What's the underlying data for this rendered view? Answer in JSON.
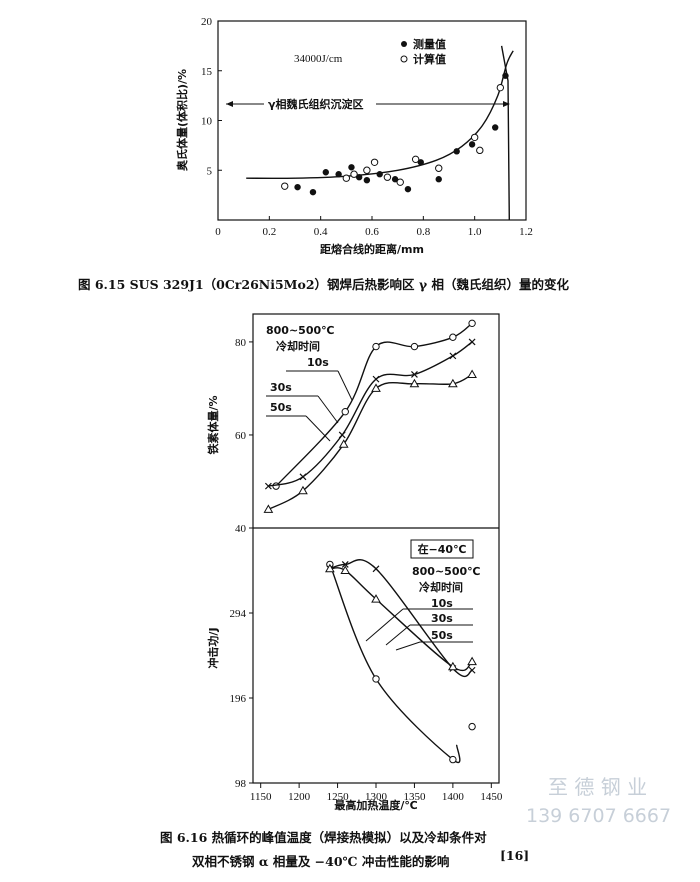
{
  "chart_data": [
    {
      "type": "scatter",
      "figure_caption": "图 6.15   SUS 329J1（0Cr26Ni5Mo2）钢焊后热影响区 γ 相（魏氏组织）量的变化",
      "xlabel": "距熔合线的距离/mm",
      "ylabel": "奥氏体量(体积比)/%",
      "xlim": [
        0,
        1.2
      ],
      "ylim": [
        0,
        20
      ],
      "x_ticks": [
        "0",
        "0.2",
        "0.4",
        "0.6",
        "0.8",
        "1.0",
        "1.2"
      ],
      "y_ticks": [
        "5",
        "10",
        "15",
        "20"
      ],
      "annotation_energy": "34000J/cm",
      "annotation_region": "γ相魏氏组织沉淀区",
      "legend": [
        {
          "label": "测量值",
          "marker": "filled-circle"
        },
        {
          "label": "计算值",
          "marker": "open-circle"
        }
      ],
      "series": [
        {
          "name": "测量值",
          "marker": "filled-circle",
          "points": [
            [
              0.31,
              3.3
            ],
            [
              0.37,
              2.8
            ],
            [
              0.42,
              4.8
            ],
            [
              0.47,
              4.6
            ],
            [
              0.52,
              5.3
            ],
            [
              0.55,
              4.3
            ],
            [
              0.58,
              4.0
            ],
            [
              0.63,
              4.6
            ],
            [
              0.69,
              4.1
            ],
            [
              0.74,
              3.1
            ],
            [
              0.79,
              5.8
            ],
            [
              0.86,
              4.1
            ],
            [
              0.93,
              6.9
            ],
            [
              0.99,
              7.6
            ],
            [
              1.08,
              9.3
            ],
            [
              1.12,
              14.5
            ]
          ]
        },
        {
          "name": "计算值",
          "marker": "open-circle",
          "points": [
            [
              0.26,
              3.4
            ],
            [
              0.5,
              4.2
            ],
            [
              0.53,
              4.6
            ],
            [
              0.58,
              5.0
            ],
            [
              0.61,
              5.8
            ],
            [
              0.66,
              4.3
            ],
            [
              0.71,
              3.8
            ],
            [
              0.77,
              6.1
            ],
            [
              0.86,
              5.2
            ],
            [
              1.0,
              8.3
            ],
            [
              1.02,
              7.0
            ],
            [
              1.1,
              13.3
            ]
          ]
        },
        {
          "name": "curve",
          "style": "line",
          "points": [
            [
              0.11,
              4.2
            ],
            [
              0.3,
              4.2
            ],
            [
              0.5,
              4.4
            ],
            [
              0.7,
              5.0
            ],
            [
              0.85,
              6.0
            ],
            [
              0.95,
              7.4
            ],
            [
              1.03,
              9.5
            ],
            [
              1.09,
              12.5
            ],
            [
              1.125,
              15.7
            ],
            [
              1.15,
              17.0
            ]
          ]
        },
        {
          "name": "boundary",
          "style": "line",
          "points": [
            [
              1.105,
              17.5
            ],
            [
              1.13,
              14.0
            ],
            [
              1.135,
              0.0
            ]
          ]
        }
      ]
    },
    {
      "type": "line",
      "figure_caption_line1": "图 6.16   热循环的峰值温度（焊接热模拟）以及冷却条件对",
      "figure_caption_line2": "双相不锈钢 α 相量及 −40℃ 冲击性能的影响",
      "figure_caption_ref": "[16]",
      "xlabel": "最高加热温度/℃",
      "x_ticks": [
        "1150",
        "1200",
        "1250",
        "1300",
        "1350",
        "1400",
        "1450"
      ],
      "xlim": [
        1140,
        1460
      ],
      "top_panel": {
        "ylabel": "铁素体量/%",
        "ylim": [
          40,
          86
        ],
        "y_ticks": [
          "40",
          "60",
          "80"
        ],
        "legend_title_1": "800~500℃",
        "legend_title_2": "冷却时间",
        "series": [
          {
            "name": "10s",
            "marker": "open-circle",
            "points": [
              [
                1170,
                49
              ],
              [
                1260,
                65
              ],
              [
                1300,
                79
              ],
              [
                1350,
                79
              ],
              [
                1400,
                81
              ],
              [
                1425,
                84
              ]
            ]
          },
          {
            "name": "30s",
            "marker": "x",
            "points": [
              [
                1160,
                49
              ],
              [
                1205,
                51
              ],
              [
                1256,
                60
              ],
              [
                1300,
                72
              ],
              [
                1350,
                73
              ],
              [
                1400,
                77
              ],
              [
                1425,
                80
              ]
            ]
          },
          {
            "name": "50s",
            "marker": "triangle",
            "points": [
              [
                1160,
                44
              ],
              [
                1205,
                48
              ],
              [
                1258,
                58
              ],
              [
                1300,
                70
              ],
              [
                1350,
                71
              ],
              [
                1400,
                71
              ],
              [
                1425,
                73
              ]
            ]
          }
        ]
      },
      "bottom_panel": {
        "ylabel": "冲击功/J",
        "ylim": [
          98,
          392
        ],
        "y_ticks": [
          "98",
          "196",
          "294"
        ],
        "condition": "在−40℃",
        "legend_title_1": "800~500℃",
        "legend_title_2": "冷却时间",
        "series": [
          {
            "name": "10s",
            "marker": "open-circle",
            "points": [
              [
                1240,
                350
              ],
              [
                1300,
                218
              ],
              [
                1400,
                125
              ],
              [
                1425,
                163
              ]
            ]
          },
          {
            "name": "30s",
            "marker": "x",
            "points": [
              [
                1240,
                345
              ],
              [
                1260,
                350
              ],
              [
                1300,
                345
              ],
              [
                1400,
                230
              ],
              [
                1425,
                228
              ]
            ]
          },
          {
            "name": "50s",
            "marker": "triangle",
            "points": [
              [
                1240,
                345
              ],
              [
                1260,
                343
              ],
              [
                1300,
                310
              ],
              [
                1400,
                232
              ],
              [
                1425,
                238
              ]
            ]
          }
        ]
      }
    }
  ],
  "watermark": {
    "name": "至 德 钢 业",
    "phone": "139 6707 6667"
  }
}
